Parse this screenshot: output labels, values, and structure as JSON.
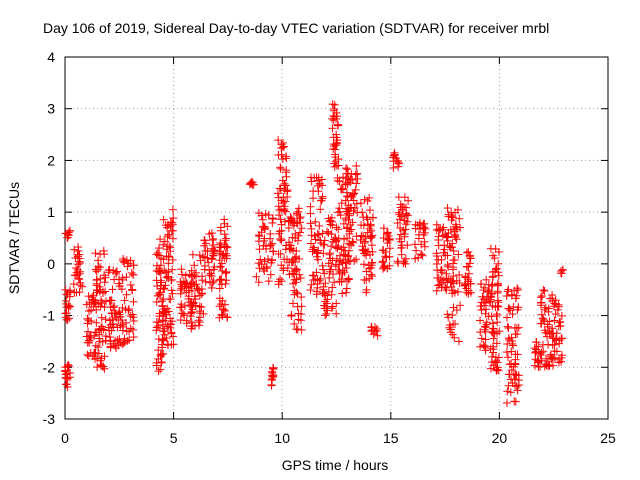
{
  "chart_data": {
    "type": "scatter",
    "title": "Day 106 of 2019, Sidereal Day-to-day VTEC variation (SDTVAR) for receiver mrbl",
    "xlabel": "GPS time / hours",
    "ylabel": "SDTVAR / TECUs",
    "xlim": [
      0,
      25
    ],
    "ylim": [
      -3,
      4
    ],
    "x_ticks": [
      0,
      5,
      10,
      15,
      20,
      25
    ],
    "y_ticks": [
      -3,
      -2,
      -1,
      0,
      1,
      2,
      3,
      4
    ],
    "x_tick_labels": [
      "0",
      "5",
      "10",
      "15",
      "20",
      "25"
    ],
    "y_tick_labels": [
      "-3",
      "-2",
      "-1",
      "0",
      "1",
      "2",
      "3",
      "4"
    ],
    "grid": true,
    "marker": "plus",
    "color": "#ff0000",
    "series": [
      {
        "name": "SDTVAR",
        "clusters": [
          {
            "x": [
              0.0,
              0.25
            ],
            "y": [
              -2.4,
              -1.9
            ]
          },
          {
            "x": [
              0.0,
              0.25
            ],
            "y": [
              -1.1,
              -0.5
            ]
          },
          {
            "x": [
              0.0,
              0.25
            ],
            "y": [
              0.5,
              0.65
            ]
          },
          {
            "x": [
              0.4,
              0.8
            ],
            "y": [
              -0.6,
              0.35
            ]
          },
          {
            "x": [
              1.0,
              1.4
            ],
            "y": [
              -1.9,
              -0.6
            ]
          },
          {
            "x": [
              1.4,
              1.9
            ],
            "y": [
              -2.1,
              0.35
            ]
          },
          {
            "x": [
              2.0,
              2.5
            ],
            "y": [
              -1.7,
              -0.1
            ]
          },
          {
            "x": [
              2.5,
              3.2
            ],
            "y": [
              -1.6,
              0.1
            ]
          },
          {
            "x": [
              4.2,
              4.6
            ],
            "y": [
              -2.1,
              0.5
            ]
          },
          {
            "x": [
              4.5,
              5.0
            ],
            "y": [
              -1.6,
              1.05
            ]
          },
          {
            "x": [
              5.3,
              5.9
            ],
            "y": [
              -1.3,
              0.0
            ]
          },
          {
            "x": [
              5.8,
              6.4
            ],
            "y": [
              -1.2,
              0.2
            ]
          },
          {
            "x": [
              6.4,
              6.9
            ],
            "y": [
              -0.5,
              0.6
            ]
          },
          {
            "x": [
              7.1,
              7.5
            ],
            "y": [
              -1.1,
              0.9
            ]
          },
          {
            "x": [
              8.5,
              8.7
            ],
            "y": [
              1.5,
              1.6
            ]
          },
          {
            "x": [
              8.8,
              9.6
            ],
            "y": [
              -0.4,
              1.0
            ]
          },
          {
            "x": [
              9.5,
              9.6
            ],
            "y": [
              -2.4,
              -1.9
            ]
          },
          {
            "x": [
              9.8,
              10.4
            ],
            "y": [
              -0.4,
              2.4
            ]
          },
          {
            "x": [
              10.4,
              10.9
            ],
            "y": [
              -1.3,
              1.1
            ]
          },
          {
            "x": [
              11.3,
              11.9
            ],
            "y": [
              -0.6,
              1.7
            ]
          },
          {
            "x": [
              11.9,
              12.5
            ],
            "y": [
              -1.0,
              0.9
            ]
          },
          {
            "x": [
              12.3,
              12.6
            ],
            "y": [
              1.8,
              3.1
            ]
          },
          {
            "x": [
              12.5,
              13.1
            ],
            "y": [
              -0.6,
              1.7
            ]
          },
          {
            "x": [
              12.9,
              13.5
            ],
            "y": [
              0.0,
              1.9
            ]
          },
          {
            "x": [
              13.6,
              14.2
            ],
            "y": [
              -0.6,
              1.3
            ]
          },
          {
            "x": [
              14.1,
              14.4
            ],
            "y": [
              -1.4,
              -1.2
            ]
          },
          {
            "x": [
              14.6,
              15.0
            ],
            "y": [
              -0.1,
              0.7
            ]
          },
          {
            "x": [
              15.1,
              15.4
            ],
            "y": [
              1.85,
              2.15
            ]
          },
          {
            "x": [
              15.3,
              15.8
            ],
            "y": [
              0.0,
              1.3
            ]
          },
          {
            "x": [
              16.1,
              16.6
            ],
            "y": [
              0.1,
              0.8
            ]
          },
          {
            "x": [
              17.1,
              17.6
            ],
            "y": [
              -0.6,
              0.8
            ]
          },
          {
            "x": [
              17.6,
              18.2
            ],
            "y": [
              -1.5,
              1.1
            ]
          },
          {
            "x": [
              18.4,
              18.7
            ],
            "y": [
              -0.6,
              0.3
            ]
          },
          {
            "x": [
              19.1,
              19.6
            ],
            "y": [
              -1.7,
              -0.3
            ]
          },
          {
            "x": [
              19.6,
              20.0
            ],
            "y": [
              -2.1,
              0.3
            ]
          },
          {
            "x": [
              20.3,
              20.9
            ],
            "y": [
              -2.7,
              -0.4
            ]
          },
          {
            "x": [
              21.6,
              21.9
            ],
            "y": [
              -2.0,
              -1.5
            ]
          },
          {
            "x": [
              21.9,
              22.4
            ],
            "y": [
              -2.0,
              -0.5
            ]
          },
          {
            "x": [
              22.4,
              22.9
            ],
            "y": [
              -2.0,
              -0.6
            ]
          },
          {
            "x": [
              22.8,
              22.95
            ],
            "y": [
              -0.2,
              -0.1
            ]
          }
        ]
      }
    ]
  }
}
